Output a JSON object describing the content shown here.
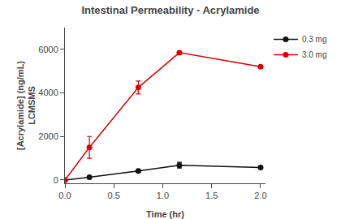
{
  "chart_data": {
    "type": "line",
    "title": "Intestinal Permeability - Acrylamide",
    "xlabel": "Time (hr)",
    "ylabel": "[Acrylamide] (ng/mL)\nLCMSMS",
    "x": [
      0.0,
      0.25,
      0.75,
      1.17,
      2.0
    ],
    "series": [
      {
        "name": "0.3 mg",
        "color": "#111111",
        "marker": "circle",
        "line_style": "solid",
        "values": [
          0,
          125,
          420,
          680,
          580
        ],
        "errors": [
          0,
          30,
          50,
          130,
          60
        ]
      },
      {
        "name": "3.0 mg",
        "color": "#dd0000",
        "marker": "circle",
        "line_style": "solid",
        "values": [
          0,
          1500,
          4250,
          5850,
          5200
        ],
        "errors": [
          0,
          500,
          300,
          0,
          0
        ]
      }
    ],
    "xlim": [
      0.0,
      2.05
    ],
    "ylim": [
      -150,
      7000
    ],
    "xticks": [
      {
        "value": 0.0,
        "label": "0.0"
      },
      0.5,
      {
        "value": 1.0,
        "label": "1.0"
      },
      1.5,
      {
        "value": 2.0,
        "label": "2.0"
      }
    ],
    "yticks": [
      0,
      2000,
      4000,
      6000
    ],
    "grid": false,
    "legend": "right"
  }
}
